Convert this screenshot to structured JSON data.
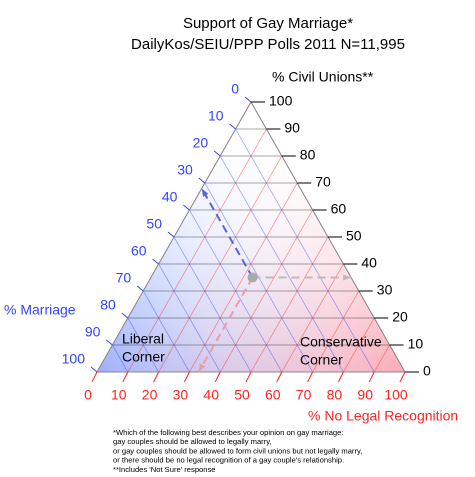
{
  "chart_data": {
    "type": "ternary",
    "title": "Support of Gay Marriage*",
    "subtitle": "DailyKos/SEIU/PPP Polls 2011 N=11,995",
    "axes": [
      {
        "name": "% Marriage",
        "color": "#3344ff",
        "ticks": [
          0,
          10,
          20,
          30,
          40,
          50,
          60,
          70,
          80,
          90,
          100
        ]
      },
      {
        "name": "% Civil Unions**",
        "color": "#000000",
        "ticks": [
          0,
          10,
          20,
          30,
          40,
          50,
          60,
          70,
          80,
          90,
          100
        ]
      },
      {
        "name": "% No Legal Recognition",
        "color": "#ff2222",
        "ticks": [
          0,
          10,
          20,
          30,
          40,
          50,
          60,
          70,
          80,
          90,
          100
        ]
      }
    ],
    "values": [
      32,
      35,
      33
    ],
    "point_color": "#aaaaaa",
    "annotations": [
      {
        "lines": [
          "Liberal",
          "Corner"
        ]
      },
      {
        "lines": [
          "Conservative",
          "Corner"
        ]
      }
    ],
    "footnotes": [
      "*Which of the following best describes your opinion on gay marriage:",
      "gay couples should be allowed to legally marry,",
      "or gay couples should be allowed to form civil unions but not legally marry,",
      "or there should be no legal recognition of a gay couple's relationship.",
      "**Includes 'Not Sure' response"
    ]
  }
}
